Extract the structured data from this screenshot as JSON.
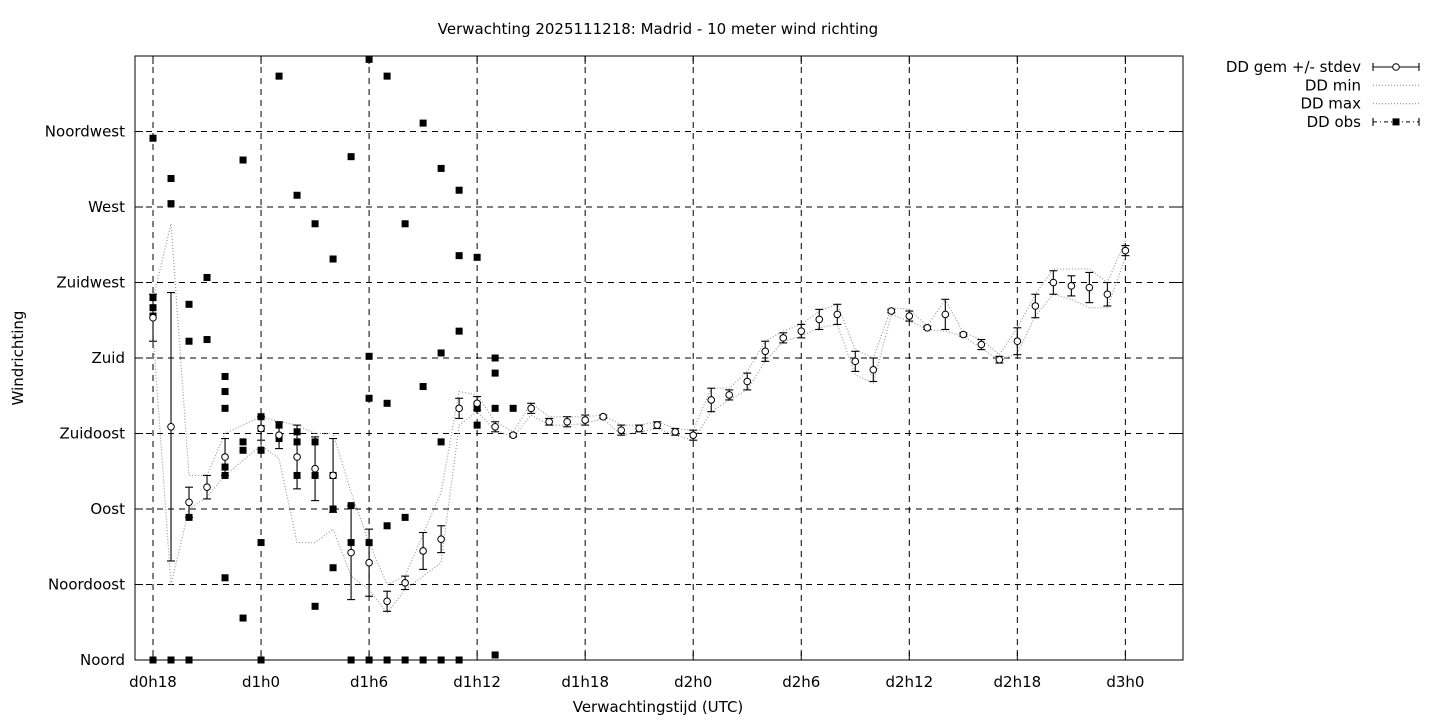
{
  "chart_data": {
    "type": "scatter",
    "title": "Verwachting 2025111218: Madrid - 10 meter wind richting",
    "xlabel": "Verwachtingstijd (UTC)",
    "ylabel": "Windrichting",
    "x_unit": "hours since d0h18",
    "xlim": [
      -1.0,
      57.2
    ],
    "ylim": [
      0,
      360
    ],
    "x_ticks": [
      {
        "x": 0,
        "label": "d0h18"
      },
      {
        "x": 6,
        "label": "d1h0"
      },
      {
        "x": 12,
        "label": "d1h6"
      },
      {
        "x": 18,
        "label": "d1h12"
      },
      {
        "x": 24,
        "label": "d1h18"
      },
      {
        "x": 30,
        "label": "d2h0"
      },
      {
        "x": 36,
        "label": "d2h6"
      },
      {
        "x": 42,
        "label": "d2h12"
      },
      {
        "x": 48,
        "label": "d2h18"
      },
      {
        "x": 54,
        "label": "d3h0"
      }
    ],
    "y_ticks": [
      {
        "y": 0,
        "label": "Noord"
      },
      {
        "y": 45,
        "label": "Noordoost"
      },
      {
        "y": 90,
        "label": "Oost"
      },
      {
        "y": 135,
        "label": "Zuidoost"
      },
      {
        "y": 180,
        "label": "Zuid"
      },
      {
        "y": 225,
        "label": "Zuidwest"
      },
      {
        "y": 270,
        "label": "West"
      },
      {
        "y": 315,
        "label": "Noordwest"
      }
    ],
    "grid": true,
    "legend_position": "outside-top-right",
    "legend": [
      "DD gem +/- stdev",
      "DD min",
      "DD max",
      "DD obs"
    ],
    "series": [
      {
        "name": "DD gem +/- stdev",
        "points": [
          {
            "x": 0,
            "y": 204,
            "sd": 14
          },
          {
            "x": 1,
            "y": 139,
            "sd": 80
          },
          {
            "x": 2,
            "y": 94,
            "sd": 9
          },
          {
            "x": 3,
            "y": 103,
            "sd": 7
          },
          {
            "x": 4,
            "y": 121,
            "sd": 11
          },
          {
            "x": 6,
            "y": 138,
            "sd": 7
          },
          {
            "x": 7,
            "y": 134,
            "sd": 8
          },
          {
            "x": 8,
            "y": 121,
            "sd": 19
          },
          {
            "x": 9,
            "y": 114,
            "sd": 19
          },
          {
            "x": 10,
            "y": 110,
            "sd": 22
          },
          {
            "x": 11,
            "y": 64,
            "sd": 28
          },
          {
            "x": 12,
            "y": 58,
            "sd": 20
          },
          {
            "x": 13,
            "y": 35,
            "sd": 6
          },
          {
            "x": 14,
            "y": 46,
            "sd": 4
          },
          {
            "x": 15,
            "y": 65,
            "sd": 11
          },
          {
            "x": 16,
            "y": 72,
            "sd": 8
          },
          {
            "x": 17,
            "y": 150,
            "sd": 6
          },
          {
            "x": 18,
            "y": 153,
            "sd": 4
          },
          {
            "x": 19,
            "y": 139,
            "sd": 3
          },
          {
            "x": 20,
            "y": 134,
            "sd": 1
          },
          {
            "x": 21,
            "y": 150,
            "sd": 3
          },
          {
            "x": 22,
            "y": 142,
            "sd": 2
          },
          {
            "x": 23,
            "y": 142,
            "sd": 3
          },
          {
            "x": 24,
            "y": 143,
            "sd": 3
          },
          {
            "x": 25,
            "y": 145,
            "sd": 1
          },
          {
            "x": 26,
            "y": 137,
            "sd": 3
          },
          {
            "x": 27,
            "y": 138,
            "sd": 2
          },
          {
            "x": 28,
            "y": 140,
            "sd": 2
          },
          {
            "x": 29,
            "y": 136,
            "sd": 2
          },
          {
            "x": 30,
            "y": 134,
            "sd": 3
          },
          {
            "x": 31,
            "y": 155,
            "sd": 7
          },
          {
            "x": 32,
            "y": 158,
            "sd": 3
          },
          {
            "x": 33,
            "y": 166,
            "sd": 5
          },
          {
            "x": 34,
            "y": 184,
            "sd": 6
          },
          {
            "x": 35,
            "y": 192,
            "sd": 3
          },
          {
            "x": 36,
            "y": 196,
            "sd": 4
          },
          {
            "x": 37,
            "y": 203,
            "sd": 6
          },
          {
            "x": 38,
            "y": 206,
            "sd": 6
          },
          {
            "x": 39,
            "y": 178,
            "sd": 6
          },
          {
            "x": 40,
            "y": 173,
            "sd": 7
          },
          {
            "x": 41,
            "y": 208,
            "sd": 1
          },
          {
            "x": 42,
            "y": 205,
            "sd": 3
          },
          {
            "x": 43,
            "y": 198,
            "sd": 1
          },
          {
            "x": 44,
            "y": 206,
            "sd": 9
          },
          {
            "x": 45,
            "y": 194,
            "sd": 1
          },
          {
            "x": 46,
            "y": 188,
            "sd": 3
          },
          {
            "x": 47,
            "y": 179,
            "sd": 2
          },
          {
            "x": 48,
            "y": 190,
            "sd": 8
          },
          {
            "x": 49,
            "y": 211,
            "sd": 7
          },
          {
            "x": 50,
            "y": 225,
            "sd": 7
          },
          {
            "x": 51,
            "y": 223,
            "sd": 6
          },
          {
            "x": 52,
            "y": 222,
            "sd": 9
          },
          {
            "x": 53,
            "y": 218,
            "sd": 7
          },
          {
            "x": 54,
            "y": 244,
            "sd": 3
          }
        ]
      },
      {
        "name": "DD min",
        "x": [
          0,
          1,
          2,
          3,
          4,
          6,
          7,
          8,
          9,
          10,
          11,
          12,
          13,
          14,
          15,
          16,
          17,
          18,
          19,
          20,
          21,
          22,
          23,
          24,
          25,
          26,
          27,
          28,
          29,
          30,
          31,
          32,
          33,
          34,
          35,
          36,
          37,
          38,
          39,
          40,
          41,
          42,
          43,
          44,
          45,
          46,
          47,
          48,
          49,
          50,
          51,
          52,
          53,
          54
        ],
        "y": [
          195,
          45,
          90,
          97,
          110,
          128,
          120,
          70,
          70,
          78,
          50,
          42,
          28,
          42,
          50,
          58,
          140,
          148,
          137,
          133,
          146,
          140,
          140,
          141,
          144,
          134,
          136,
          138,
          134,
          131,
          148,
          155,
          161,
          178,
          190,
          193,
          198,
          200,
          170,
          165,
          206,
          202,
          197,
          196,
          193,
          186,
          178,
          183,
          205,
          218,
          215,
          210,
          210,
          240
        ]
      },
      {
        "name": "DD max",
        "x": [
          0,
          1,
          2,
          3,
          4,
          6,
          7,
          8,
          9,
          10,
          11,
          12,
          13,
          14,
          15,
          16,
          17,
          18,
          19,
          20,
          21,
          22,
          23,
          24,
          25,
          26,
          27,
          28,
          29,
          30,
          31,
          32,
          33,
          34,
          35,
          36,
          37,
          38,
          39,
          40,
          41,
          42,
          43,
          44,
          45,
          46,
          47,
          48,
          49,
          50,
          51,
          52,
          53,
          54
        ],
        "y": [
          215,
          260,
          110,
          110,
          135,
          145,
          142,
          140,
          135,
          135,
          100,
          70,
          45,
          50,
          75,
          100,
          160,
          158,
          142,
          136,
          153,
          145,
          145,
          145,
          146,
          140,
          140,
          142,
          138,
          137,
          162,
          162,
          172,
          190,
          196,
          200,
          208,
          212,
          185,
          180,
          210,
          209,
          199,
          215,
          195,
          191,
          182,
          198,
          218,
          233,
          233,
          233,
          225,
          250
        ]
      },
      {
        "name": "DD obs",
        "x": [
          0,
          0,
          0,
          0,
          0,
          1,
          1,
          1,
          2,
          2,
          2,
          2,
          3,
          3,
          4,
          4,
          4,
          4,
          4,
          4,
          5,
          5,
          5,
          5,
          6,
          6,
          6,
          6,
          6,
          7,
          7,
          7,
          8,
          8,
          8,
          8,
          9,
          9,
          9,
          9,
          10,
          10,
          10,
          10,
          11,
          11,
          11,
          11,
          12,
          12,
          12,
          12,
          12,
          13,
          13,
          13,
          13,
          14,
          14,
          14,
          15,
          15,
          15,
          16,
          16,
          16,
          16,
          17,
          17,
          17,
          17,
          18,
          18,
          18,
          18,
          19,
          19,
          19,
          19,
          20
        ],
        "y": [
          216,
          210,
          205,
          311,
          0,
          287,
          272,
          0,
          212,
          190,
          85,
          0,
          228,
          191,
          169,
          160,
          150,
          115,
          110,
          49,
          130,
          125,
          25,
          298,
          145,
          138,
          125,
          70,
          0,
          140,
          132,
          348,
          136,
          130,
          110,
          277,
          130,
          110,
          32,
          260,
          110,
          90,
          55,
          239,
          92,
          70,
          300,
          0,
          358,
          181,
          156,
          70,
          0,
          348,
          153,
          80,
          0,
          260,
          85,
          0,
          320,
          163,
          0,
          293,
          183,
          130,
          0,
          280,
          241,
          196,
          0,
          240,
          152,
          150,
          140,
          180,
          171,
          150,
          3,
          150
        ]
      }
    ]
  },
  "colors": {
    "line": "#000000",
    "minmax": "#999999",
    "grid": "#000000"
  },
  "marker_icons": {
    "mean": "open-circle-icon",
    "obs": "filled-square-icon"
  }
}
